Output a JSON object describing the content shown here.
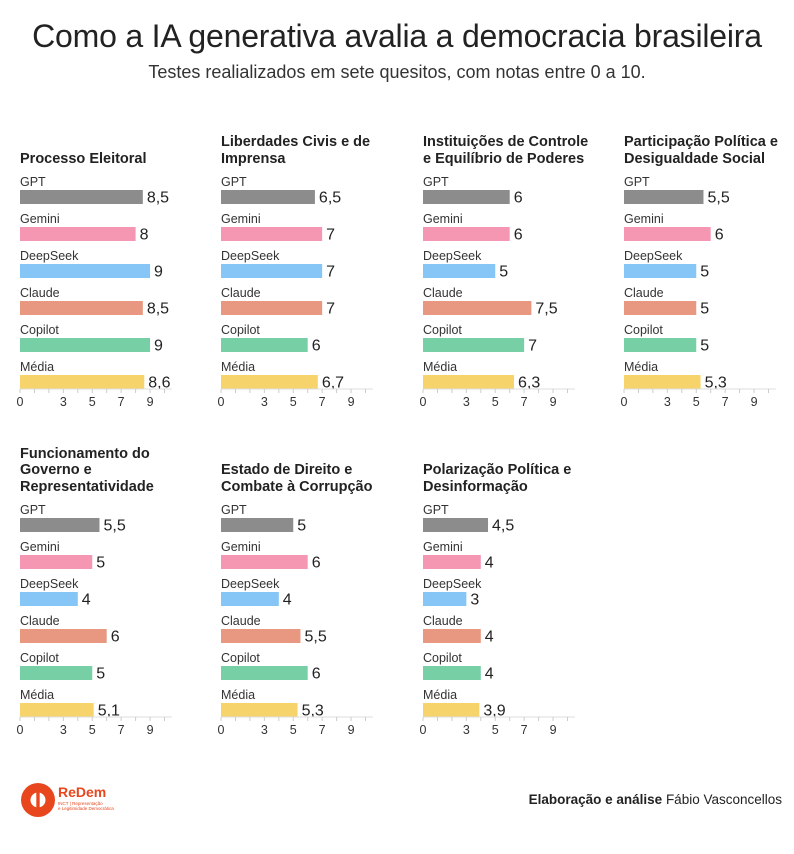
{
  "header": {
    "title": "Como a IA generativa avalia a democracia brasileira",
    "subtitle": "Testes realializados em sete quesitos, com notas entre 0 a 10."
  },
  "colors": {
    "GPT": "#8c8c8c",
    "Gemini": "#f596b3",
    "DeepSeek": "#86c6f7",
    "Claude": "#e89880",
    "Copilot": "#77cfa5",
    "Média": "#f7d36b"
  },
  "chart_data": [
    {
      "type": "bar",
      "orientation": "horizontal",
      "title": "Processo Eleitoral",
      "categories": [
        "GPT",
        "Gemini",
        "DeepSeek",
        "Claude",
        "Copilot",
        "Média"
      ],
      "values": [
        8.5,
        8,
        9,
        8.5,
        9,
        8.6
      ],
      "value_labels": [
        "8,5",
        "8",
        "9",
        "8,5",
        "9",
        "8,6"
      ],
      "xticks": [
        "0",
        "3",
        "5",
        "7",
        "9"
      ],
      "xlim": [
        0,
        10.5
      ]
    },
    {
      "type": "bar",
      "orientation": "horizontal",
      "title": "Liberdades Civis e de Imprensa",
      "categories": [
        "GPT",
        "Gemini",
        "DeepSeek",
        "Claude",
        "Copilot",
        "Média"
      ],
      "values": [
        6.5,
        7,
        7,
        7,
        6,
        6.7
      ],
      "value_labels": [
        "6,5",
        "7",
        "7",
        "7",
        "6",
        "6,7"
      ],
      "xticks": [
        "0",
        "3",
        "5",
        "7",
        "9"
      ],
      "xlim": [
        0,
        10.5
      ]
    },
    {
      "type": "bar",
      "orientation": "horizontal",
      "title": "Instituições de Controle e Equilíbrio de Poderes",
      "categories": [
        "GPT",
        "Gemini",
        "DeepSeek",
        "Claude",
        "Copilot",
        "Média"
      ],
      "values": [
        6,
        6,
        5,
        7.5,
        7,
        6.3
      ],
      "value_labels": [
        "6",
        "6",
        "5",
        "7,5",
        "7",
        "6,3"
      ],
      "xticks": [
        "0",
        "3",
        "5",
        "7",
        "9"
      ],
      "xlim": [
        0,
        10.5
      ]
    },
    {
      "type": "bar",
      "orientation": "horizontal",
      "title": "Participação Política e Desigualdade Social",
      "categories": [
        "GPT",
        "Gemini",
        "DeepSeek",
        "Claude",
        "Copilot",
        "Média"
      ],
      "values": [
        5.5,
        6,
        5,
        5,
        5,
        5.3
      ],
      "value_labels": [
        "5,5",
        "6",
        "5",
        "5",
        "5",
        "5,3"
      ],
      "xticks": [
        "0",
        "3",
        "5",
        "7",
        "9"
      ],
      "xlim": [
        0,
        10.5
      ]
    },
    {
      "type": "bar",
      "orientation": "horizontal",
      "title": "Funcionamento do Governo e Representatividade",
      "categories": [
        "GPT",
        "Gemini",
        "DeepSeek",
        "Claude",
        "Copilot",
        "Média"
      ],
      "values": [
        5.5,
        5,
        4,
        6,
        5,
        5.1
      ],
      "value_labels": [
        "5,5",
        "5",
        "4",
        "6",
        "5",
        "5,1"
      ],
      "xticks": [
        "0",
        "3",
        "5",
        "7",
        "9"
      ],
      "xlim": [
        0,
        10.5
      ]
    },
    {
      "type": "bar",
      "orientation": "horizontal",
      "title": "Estado de Direito e Combate à Corrupção",
      "categories": [
        "GPT",
        "Gemini",
        "DeepSeek",
        "Claude",
        "Copilot",
        "Média"
      ],
      "values": [
        5,
        6,
        4,
        5.5,
        6,
        5.3
      ],
      "value_labels": [
        "5",
        "6",
        "4",
        "5,5",
        "6",
        "5,3"
      ],
      "xticks": [
        "0",
        "3",
        "5",
        "7",
        "9"
      ],
      "xlim": [
        0,
        10.5
      ]
    },
    {
      "type": "bar",
      "orientation": "horizontal",
      "title": "Polarização Política e Desinformação",
      "categories": [
        "GPT",
        "Gemini",
        "DeepSeek",
        "Claude",
        "Copilot",
        "Média"
      ],
      "values": [
        4.5,
        4,
        3,
        4,
        4,
        3.9
      ],
      "value_labels": [
        "4,5",
        "4",
        "3",
        "4",
        "4",
        "3,9"
      ],
      "xticks": [
        "0",
        "3",
        "5",
        "7",
        "9"
      ],
      "xlim": [
        0,
        10.5
      ]
    }
  ],
  "logo": {
    "name": "ReDem",
    "tagline_line1": "INCT | Representação",
    "tagline_line2": "e Legitimidade Democrática"
  },
  "credit": {
    "label": "Elaboração e análise",
    "author": "Fábio Vasconcellos"
  }
}
